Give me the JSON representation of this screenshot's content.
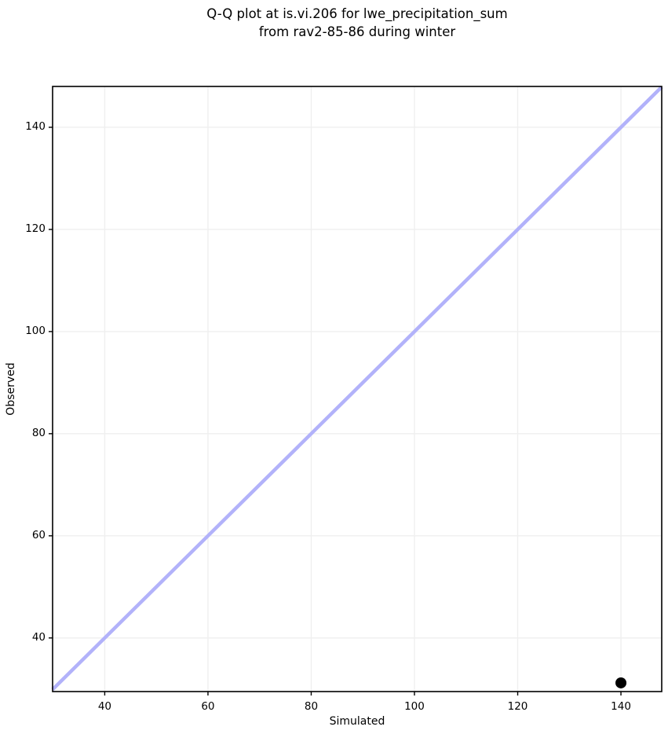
{
  "chart_data": {
    "type": "scatter",
    "title_lines": [
      "Q-Q plot at is.vi.206 for lwe_precipitation_sum",
      "from rav2-85-86 during winter"
    ],
    "xlabel": "Simulated",
    "ylabel": "Observed",
    "xlim": [
      29.9,
      147.9
    ],
    "ylim": [
      29.5,
      148.0
    ],
    "xticks": [
      40,
      60,
      80,
      100,
      120,
      140
    ],
    "yticks": [
      40,
      60,
      80,
      100,
      120,
      140
    ],
    "points": [
      {
        "x": 140,
        "y": 31.2
      }
    ],
    "identity_line": {
      "x1": 29.9,
      "y1": 29.9,
      "x2": 147.9,
      "y2": 147.9
    },
    "grid": true,
    "legend": null,
    "marker_radius": 7,
    "colors": {
      "identity_line": "#b2b2fa",
      "point": "#000000",
      "grid": "#efefef",
      "spine": "#000000",
      "text": "#000000",
      "background": "#ffffff"
    }
  }
}
